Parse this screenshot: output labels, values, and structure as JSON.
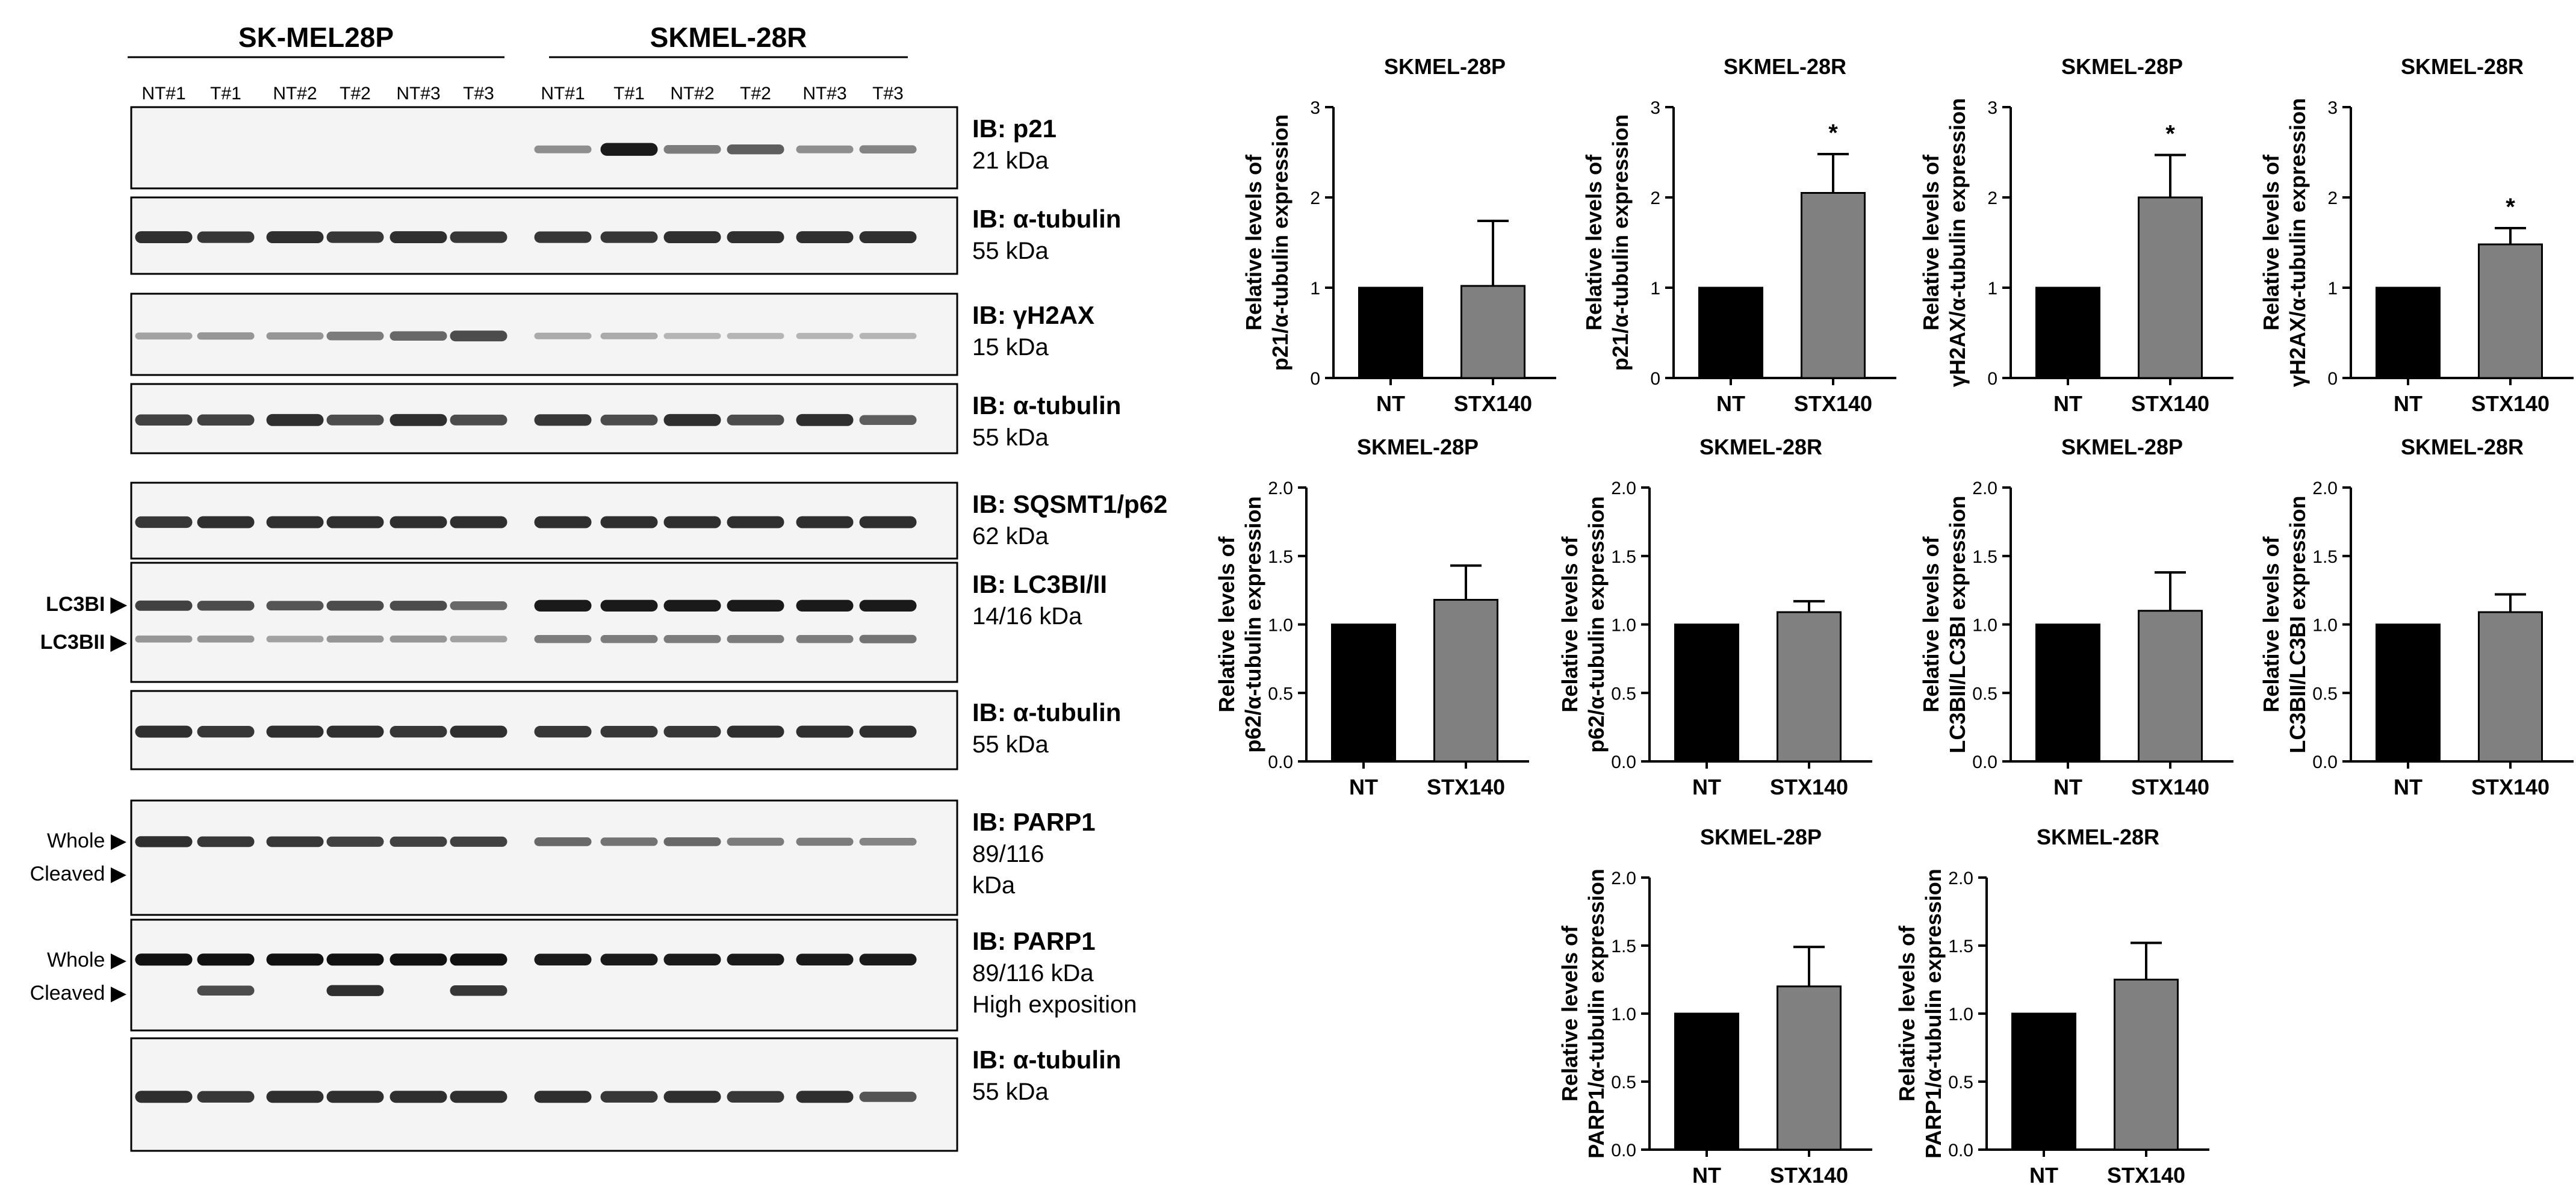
{
  "western_blot": {
    "groups": [
      {
        "label": "SK-MEL28P",
        "lanes": [
          "NT#1",
          "T#1",
          "NT#2",
          "T#2",
          "NT#3",
          "T#3"
        ]
      },
      {
        "label": "SKMEL-28R",
        "lanes": [
          "NT#1",
          "T#1",
          "NT#2",
          "T#2",
          "NT#3",
          "T#3"
        ]
      }
    ],
    "panels": [
      {
        "label_lines": [
          "IB: p21",
          "21 kDa"
        ],
        "left_markers": [],
        "bands": [
          [
            0.0,
            0.0,
            0.0,
            0.0,
            0.0,
            0.0,
            0.35,
            0.95,
            0.45,
            0.6,
            0.35,
            0.4
          ]
        ]
      },
      {
        "label_lines": [
          "IB: α-tubulin",
          "55 kDa"
        ],
        "left_markers": [],
        "bands": [
          [
            0.85,
            0.8,
            0.85,
            0.8,
            0.85,
            0.8,
            0.8,
            0.8,
            0.85,
            0.85,
            0.85,
            0.85
          ]
        ]
      },
      {
        "label_lines": [
          "IB: γH2AX",
          "15 kDa"
        ],
        "left_markers": [],
        "bands": [
          [
            0.25,
            0.3,
            0.3,
            0.45,
            0.55,
            0.7,
            0.2,
            0.2,
            0.15,
            0.15,
            0.15,
            0.15
          ]
        ]
      },
      {
        "label_lines": [
          "IB: α-tubulin",
          "55 kDa"
        ],
        "left_markers": [],
        "bands": [
          [
            0.75,
            0.75,
            0.85,
            0.7,
            0.85,
            0.7,
            0.8,
            0.7,
            0.85,
            0.7,
            0.85,
            0.6
          ]
        ]
      },
      {
        "label_lines": [
          "IB: SQSMT1/p62",
          "62 kDa"
        ],
        "left_markers": [],
        "bands": [
          [
            0.8,
            0.85,
            0.85,
            0.85,
            0.85,
            0.85,
            0.85,
            0.85,
            0.85,
            0.85,
            0.85,
            0.85
          ]
        ]
      },
      {
        "label_lines": [
          "IB: LC3BI/II",
          "14/16 kDa"
        ],
        "left_markers": [
          "LC3BI ▶",
          "LC3BII ▶"
        ],
        "bands": [
          [
            0.75,
            0.7,
            0.65,
            0.7,
            0.7,
            0.55,
            0.95,
            0.95,
            0.95,
            0.95,
            0.95,
            0.95
          ],
          [
            0.3,
            0.3,
            0.25,
            0.3,
            0.3,
            0.25,
            0.45,
            0.45,
            0.45,
            0.45,
            0.45,
            0.5
          ]
        ]
      },
      {
        "label_lines": [
          "IB: α-tubulin",
          "55 kDa"
        ],
        "left_markers": [],
        "bands": [
          [
            0.85,
            0.8,
            0.85,
            0.85,
            0.8,
            0.85,
            0.8,
            0.8,
            0.8,
            0.85,
            0.85,
            0.85
          ]
        ]
      },
      {
        "label_lines": [
          "IB: PARP1",
          "89/116",
          "kDa"
        ],
        "left_markers": [
          "Whole ▶",
          "Cleaved ▶"
        ],
        "bands": [
          [
            0.85,
            0.8,
            0.8,
            0.75,
            0.75,
            0.75,
            0.55,
            0.5,
            0.55,
            0.45,
            0.45,
            0.4
          ],
          [
            0.0,
            0.0,
            0.0,
            0.0,
            0.0,
            0.0,
            0.0,
            0.0,
            0.0,
            0.0,
            0.0,
            0.0
          ]
        ]
      },
      {
        "label_lines": [
          "IB: PARP1",
          "89/116 kDa",
          "High exposition"
        ],
        "left_markers": [
          "Whole ▶",
          "Cleaved ▶"
        ],
        "bands": [
          [
            1.0,
            1.0,
            1.0,
            1.0,
            1.0,
            1.0,
            0.95,
            0.95,
            0.95,
            0.95,
            0.95,
            0.95
          ],
          [
            0.0,
            0.7,
            0.0,
            0.85,
            0.0,
            0.8,
            0.0,
            0.0,
            0.0,
            0.0,
            0.0,
            0.0
          ]
        ]
      },
      {
        "label_lines": [
          "IB: α-tubulin",
          "55 kDa"
        ],
        "left_markers": [],
        "bands": [
          [
            0.85,
            0.8,
            0.85,
            0.85,
            0.85,
            0.85,
            0.85,
            0.8,
            0.85,
            0.8,
            0.85,
            0.65
          ]
        ]
      }
    ]
  },
  "chart_data": [
    {
      "type": "bar",
      "title": "SKMEL-28P",
      "ylabel_lines": [
        "Relative levels of",
        "p21/α-tubulin expression"
      ],
      "categories": [
        "NT",
        "STX140"
      ],
      "values": [
        1.0,
        1.02
      ],
      "errors": [
        0,
        0.72
      ],
      "ylim": [
        0,
        3
      ],
      "yticks": [
        "0",
        "1",
        "2",
        "3"
      ],
      "significance": [
        "",
        ""
      ]
    },
    {
      "type": "bar",
      "title": "SKMEL-28R",
      "ylabel_lines": [
        "Relative levels of",
        "p21/α-tubulin expression"
      ],
      "categories": [
        "NT",
        "STX140"
      ],
      "values": [
        1.0,
        2.05
      ],
      "errors": [
        0,
        0.43
      ],
      "ylim": [
        0,
        3
      ],
      "yticks": [
        "0",
        "1",
        "2",
        "3"
      ],
      "significance": [
        "",
        "*"
      ]
    },
    {
      "type": "bar",
      "title": "SKMEL-28P",
      "ylabel_lines": [
        "Relative levels of",
        "γH2AX/α-tubulin expression"
      ],
      "categories": [
        "NT",
        "STX140"
      ],
      "values": [
        1.0,
        2.0
      ],
      "errors": [
        0,
        0.47
      ],
      "ylim": [
        0,
        3
      ],
      "yticks": [
        "0",
        "1",
        "2",
        "3"
      ],
      "significance": [
        "",
        "*"
      ]
    },
    {
      "type": "bar",
      "title": "SKMEL-28R",
      "ylabel_lines": [
        "Relative levels of",
        "γH2AX/α-tubulin expression"
      ],
      "categories": [
        "NT",
        "STX140"
      ],
      "values": [
        1.0,
        1.48
      ],
      "errors": [
        0,
        0.18
      ],
      "ylim": [
        0,
        3
      ],
      "yticks": [
        "0",
        "1",
        "2",
        "3"
      ],
      "significance": [
        "",
        "*"
      ]
    },
    {
      "type": "bar",
      "title": "SKMEL-28P",
      "ylabel_lines": [
        "Relative levels of",
        "p62/α-tubulin expression"
      ],
      "categories": [
        "NT",
        "STX140"
      ],
      "values": [
        1.0,
        1.18
      ],
      "errors": [
        0,
        0.25
      ],
      "ylim": [
        0,
        2.0
      ],
      "yticks": [
        "0.0",
        "0.5",
        "1.0",
        "1.5",
        "2.0"
      ],
      "significance": [
        "",
        ""
      ]
    },
    {
      "type": "bar",
      "title": "SKMEL-28R",
      "ylabel_lines": [
        "Relative levels of",
        "p62/α-tubulin expression"
      ],
      "categories": [
        "NT",
        "STX140"
      ],
      "values": [
        1.0,
        1.09
      ],
      "errors": [
        0,
        0.08
      ],
      "ylim": [
        0,
        2.0
      ],
      "yticks": [
        "0.0",
        "0.5",
        "1.0",
        "1.5",
        "2.0"
      ],
      "significance": [
        "",
        ""
      ]
    },
    {
      "type": "bar",
      "title": "SKMEL-28P",
      "ylabel_lines": [
        "Relative levels of",
        "LC3BII/LC3BI expression"
      ],
      "categories": [
        "NT",
        "STX140"
      ],
      "values": [
        1.0,
        1.1
      ],
      "errors": [
        0,
        0.28
      ],
      "ylim": [
        0,
        2.0
      ],
      "yticks": [
        "0.0",
        "0.5",
        "1.0",
        "1.5",
        "2.0"
      ],
      "significance": [
        "",
        ""
      ]
    },
    {
      "type": "bar",
      "title": "SKMEL-28R",
      "ylabel_lines": [
        "Relative levels of",
        "LC3BII/LC3BI expression"
      ],
      "categories": [
        "NT",
        "STX140"
      ],
      "values": [
        1.0,
        1.09
      ],
      "errors": [
        0,
        0.13
      ],
      "ylim": [
        0,
        2.0
      ],
      "yticks": [
        "0.0",
        "0.5",
        "1.0",
        "1.5",
        "2.0"
      ],
      "significance": [
        "",
        ""
      ]
    },
    {
      "type": "bar",
      "title": "SKMEL-28P",
      "ylabel_lines": [
        "Relative levels of",
        "PARP1/α-tubulin expression"
      ],
      "categories": [
        "NT",
        "STX140"
      ],
      "values": [
        1.0,
        1.2
      ],
      "errors": [
        0,
        0.29
      ],
      "ylim": [
        0,
        2.0
      ],
      "yticks": [
        "0.0",
        "0.5",
        "1.0",
        "1.5",
        "2.0"
      ],
      "significance": [
        "",
        ""
      ]
    },
    {
      "type": "bar",
      "title": "SKMEL-28R",
      "ylabel_lines": [
        "Relative levels of",
        "PARP1/α-tubulin expression"
      ],
      "categories": [
        "NT",
        "STX140"
      ],
      "values": [
        1.0,
        1.25
      ],
      "errors": [
        0,
        0.27
      ],
      "ylim": [
        0,
        2.0
      ],
      "yticks": [
        "0.0",
        "0.5",
        "1.0",
        "1.5",
        "2.0"
      ],
      "significance": [
        "",
        ""
      ]
    }
  ],
  "colors": {
    "bar_nt": "#000000",
    "bar_stx140": "#808080",
    "band": "#111111",
    "axis": "#000000"
  }
}
